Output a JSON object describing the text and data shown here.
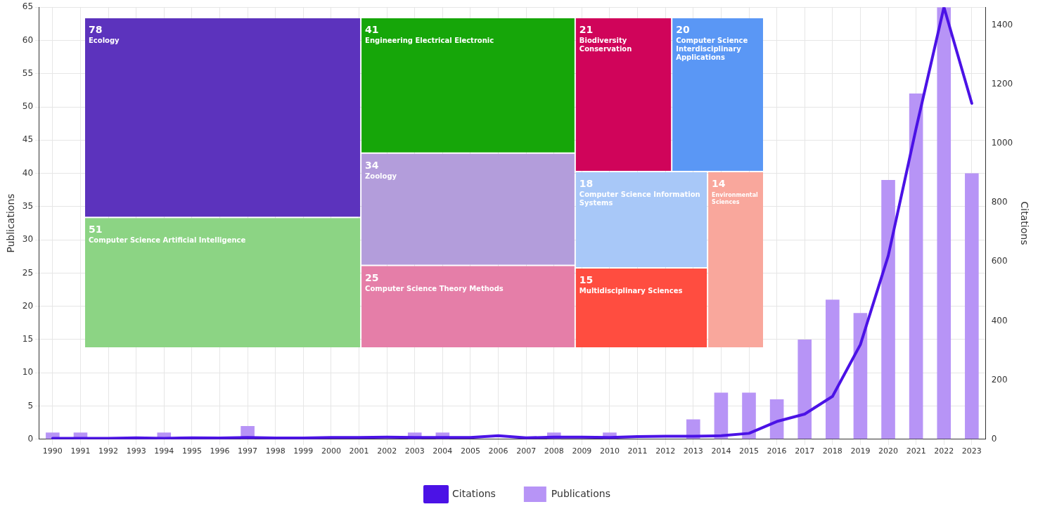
{
  "chart_data": [
    {
      "type": "bar",
      "categories": [
        "1990",
        "1991",
        "1992",
        "1993",
        "1994",
        "1995",
        "1996",
        "1997",
        "1998",
        "1999",
        "2000",
        "2001",
        "2002",
        "2003",
        "2004",
        "2005",
        "2006",
        "2007",
        "2008",
        "2009",
        "2010",
        "2011",
        "2012",
        "2013",
        "2014",
        "2015",
        "2016",
        "2017",
        "2018",
        "2019",
        "2020",
        "2021",
        "2022",
        "2023"
      ],
      "series": [
        {
          "name": "Publications",
          "type": "bar",
          "color": "#b794f6",
          "values": [
            1,
            1,
            0,
            0,
            1,
            0,
            0,
            2,
            0,
            0,
            0,
            0,
            0,
            1,
            1,
            0,
            0,
            0,
            1,
            0,
            1,
            0,
            0,
            3,
            7,
            7,
            6,
            15,
            21,
            19,
            39,
            52,
            65,
            40
          ]
        },
        {
          "name": "Citations",
          "type": "line",
          "axis": "y2",
          "color": "#4b12e6",
          "values": [
            3,
            3,
            3,
            5,
            3,
            5,
            4,
            6,
            4,
            4,
            6,
            6,
            7,
            6,
            6,
            6,
            12,
            5,
            7,
            7,
            6,
            9,
            10,
            10,
            12,
            20,
            60,
            85,
            145,
            320,
            620,
            1050,
            1460,
            1135
          ]
        }
      ],
      "ylabel": "Publications",
      "y2label": "Citations",
      "ylim": [
        0,
        65
      ],
      "yticks": [
        0,
        5,
        10,
        15,
        20,
        25,
        30,
        35,
        40,
        45,
        50,
        55,
        60,
        65
      ],
      "y2lim": [
        0,
        1460
      ],
      "y2ticks": [
        0,
        200,
        400,
        600,
        800,
        1000,
        1200,
        1400
      ],
      "grid": true,
      "legend": "bottom",
      "marker": "none"
    },
    {
      "type": "other",
      "categories": [
        "Ecology",
        "Computer Science Artificial Intelligence",
        "Engineering Electrical Electronic",
        "Zoology",
        "Computer Science Theory Methods",
        "Biodiversity Conservation",
        "Computer Science Interdisciplinary Applications",
        "Computer Science Information Systems",
        "Multidisciplinary Sciences",
        "Environmental Sciences"
      ],
      "values": [
        78,
        51,
        41,
        34,
        25,
        21,
        20,
        18,
        15,
        14
      ],
      "colors": [
        "#5c33bd",
        "#8cd484",
        "#16a609",
        "#b39ddb",
        "#e57ea8",
        "#d0045a",
        "#5a97f5",
        "#a8c8f8",
        "#ff4d40",
        "#f9a79c"
      ],
      "data_labels": true
    }
  ]
}
